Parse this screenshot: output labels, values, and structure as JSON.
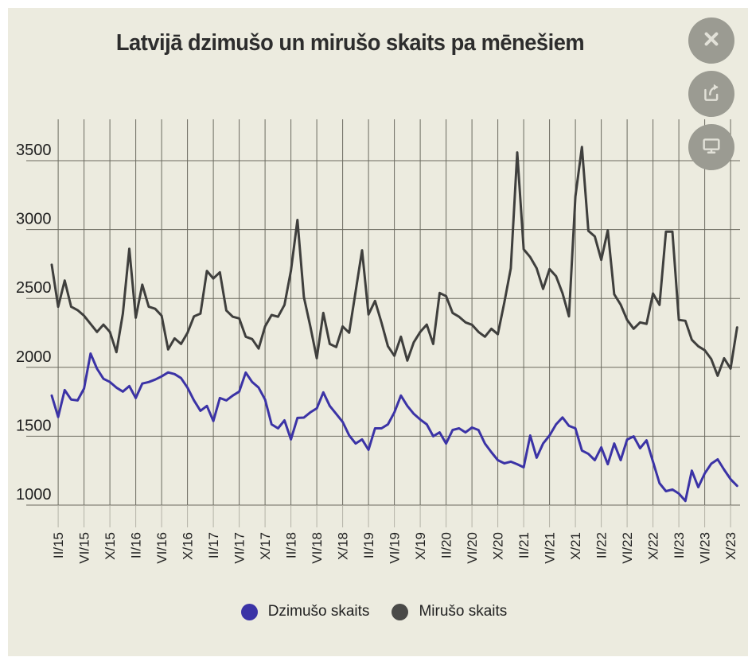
{
  "title": "Latvijā dzimušo un mirušo skaits pa mēnešiem",
  "toolbar": {
    "close": "close",
    "share": "share",
    "screen": "screen"
  },
  "colors": {
    "background": "#ECEBDF",
    "page": "#ffffff",
    "grid": "#6b6a5f",
    "births_line": "#3B33A6",
    "deaths_line": "#3F3F3D",
    "button": "#9b9b92",
    "button_icon": "#E2E1D8",
    "text": "#1e1e1e"
  },
  "legend": {
    "items": [
      {
        "label": "Dzimušo skaits",
        "color": "#3B33A6"
      },
      {
        "label": "Mirušo skaits",
        "color": "#4A4A48"
      }
    ]
  },
  "chart_data": {
    "type": "line",
    "title": "Latvijā dzimušo un mirušo skaits pa mēnešiem",
    "xlabel": "",
    "ylabel": "",
    "ylim": [
      1000,
      3500
    ],
    "grid": true,
    "legend_position": "bottom",
    "y_ticks": [
      1000,
      1500,
      2000,
      2500,
      3000,
      3500
    ],
    "x_tick_labels": [
      "II/15",
      "VI/15",
      "X/15",
      "II/16",
      "VI/16",
      "X/16",
      "II/17",
      "VI/17",
      "X/17",
      "II/18",
      "VI/18",
      "X/18",
      "II/19",
      "VI/19",
      "X/19",
      "II/20",
      "VI/20",
      "X/20",
      "II/21",
      "VI/21",
      "X/21",
      "II/22",
      "VI/22",
      "X/22",
      "II/23",
      "VI/23",
      "X/23"
    ],
    "categories": [
      "I/15",
      "II/15",
      "III/15",
      "IV/15",
      "V/15",
      "VI/15",
      "VII/15",
      "VIII/15",
      "IX/15",
      "X/15",
      "XI/15",
      "XII/15",
      "I/16",
      "II/16",
      "III/16",
      "IV/16",
      "V/16",
      "VI/16",
      "VII/16",
      "VIII/16",
      "IX/16",
      "X/16",
      "XI/16",
      "XII/16",
      "I/17",
      "II/17",
      "III/17",
      "IV/17",
      "V/17",
      "VI/17",
      "VII/17",
      "VIII/17",
      "IX/17",
      "X/17",
      "XI/17",
      "XII/17",
      "I/18",
      "II/18",
      "III/18",
      "IV/18",
      "V/18",
      "VI/18",
      "VII/18",
      "VIII/18",
      "IX/18",
      "X/18",
      "XI/18",
      "XII/18",
      "I/19",
      "II/19",
      "III/19",
      "IV/19",
      "V/19",
      "VI/19",
      "VII/19",
      "VIII/19",
      "IX/19",
      "X/19",
      "XI/19",
      "XII/19",
      "I/20",
      "II/20",
      "III/20",
      "IV/20",
      "V/20",
      "VI/20",
      "VII/20",
      "VIII/20",
      "IX/20",
      "X/20",
      "XI/20",
      "XII/20",
      "I/21",
      "II/21",
      "III/21",
      "IV/21",
      "V/21",
      "VI/21",
      "VII/21",
      "VIII/21",
      "IX/21",
      "X/21",
      "XI/21",
      "XII/21",
      "I/22",
      "II/22",
      "III/22",
      "IV/22",
      "V/22",
      "VI/22",
      "VII/22",
      "VIII/22",
      "IX/22",
      "X/22",
      "XI/22",
      "XII/22",
      "I/23",
      "II/23",
      "III/23",
      "IV/23",
      "V/23",
      "VI/23",
      "VII/23",
      "VIII/23",
      "IX/23",
      "X/23",
      "XI/23"
    ],
    "series": [
      {
        "name": "Dzimušo skaits",
        "color": "#3B33A6",
        "values": [
          1795,
          1640,
          1835,
          1766,
          1760,
          1846,
          2100,
          1990,
          1917,
          1894,
          1853,
          1824,
          1864,
          1777,
          1882,
          1893,
          1911,
          1934,
          1963,
          1951,
          1922,
          1853,
          1760,
          1685,
          1720,
          1610,
          1777,
          1760,
          1795,
          1824,
          1962,
          1893,
          1853,
          1766,
          1586,
          1557,
          1615,
          1477,
          1633,
          1635,
          1673,
          1702,
          1818,
          1720,
          1662,
          1604,
          1506,
          1447,
          1477,
          1401,
          1557,
          1557,
          1586,
          1673,
          1795,
          1720,
          1662,
          1621,
          1586,
          1500,
          1528,
          1447,
          1545,
          1557,
          1528,
          1563,
          1545,
          1447,
          1384,
          1326,
          1303,
          1315,
          1297,
          1274,
          1505,
          1344,
          1447,
          1505,
          1586,
          1636,
          1575,
          1557,
          1396,
          1372,
          1326,
          1419,
          1297,
          1447,
          1326,
          1476,
          1499,
          1413,
          1470,
          1315,
          1159,
          1101,
          1113,
          1084,
          1030,
          1250,
          1130,
          1230,
          1300,
          1332,
          1257,
          1188,
          1140
        ]
      },
      {
        "name": "Mirušo skaits",
        "color": "#3F3F3D",
        "values": [
          2745,
          2440,
          2630,
          2440,
          2415,
          2375,
          2315,
          2257,
          2310,
          2257,
          2110,
          2390,
          2860,
          2360,
          2600,
          2440,
          2425,
          2375,
          2130,
          2210,
          2170,
          2250,
          2370,
          2390,
          2700,
          2645,
          2690,
          2413,
          2367,
          2355,
          2222,
          2205,
          2136,
          2297,
          2380,
          2367,
          2453,
          2701,
          3070,
          2510,
          2297,
          2066,
          2395,
          2170,
          2147,
          2297,
          2251,
          2550,
          2850,
          2384,
          2482,
          2325,
          2153,
          2084,
          2222,
          2049,
          2182,
          2257,
          2310,
          2170,
          2540,
          2517,
          2395,
          2367,
          2326,
          2309,
          2257,
          2222,
          2280,
          2240,
          2471,
          2719,
          3560,
          2857,
          2800,
          2719,
          2569,
          2713,
          2661,
          2538,
          2370,
          3240,
          3600,
          2990,
          2950,
          2780,
          2995,
          2530,
          2455,
          2344,
          2280,
          2326,
          2315,
          2536,
          2453,
          2985,
          2985,
          2344,
          2338,
          2200,
          2153,
          2124,
          2060,
          1939,
          2066,
          1991,
          2290
        ]
      }
    ]
  }
}
